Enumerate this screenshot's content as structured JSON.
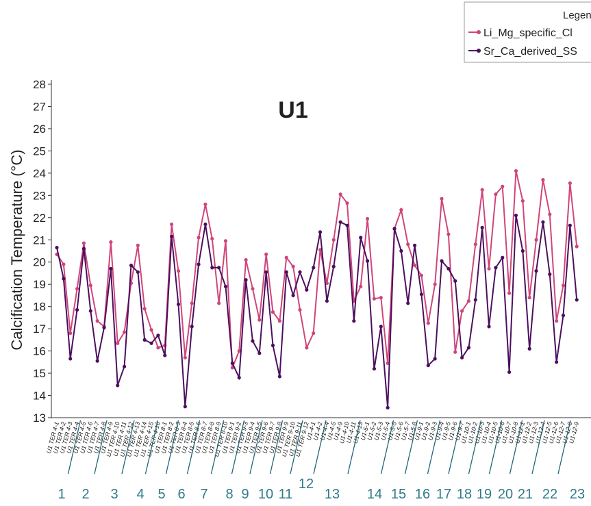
{
  "chart_data": {
    "type": "line",
    "title": "U1",
    "y_label": "Calcification Temperature (°C)",
    "legend_title": "Legen",
    "legend_position": "top-right",
    "ylim": [
      13,
      28
    ],
    "yticks": [
      13,
      14,
      15,
      16,
      17,
      18,
      19,
      20,
      21,
      22,
      23,
      24,
      25,
      26,
      27,
      28
    ],
    "categories": [
      "U1 TER 4-1",
      "U1 TER 4-2",
      "U1 TER 4-3",
      "U1 TER 4-4",
      "U1 TER 4-5",
      "U1 TER 4-6",
      "U1 TER 4-7",
      "U1 TER 4-8",
      "U1 TER 4-9",
      "U1 TER 4-10",
      "U1 TER 4-11",
      "U1 TER 4-12",
      "U1 TER 4-13",
      "U1 TER 4-14",
      "U1 TER 4-15",
      "U1 TER 4-16",
      "U1 TER 8-1",
      "U1 TER 8-2",
      "U1 TER 8-3",
      "U1 TER 8-4",
      "U1 TER 8-5",
      "U1 TER 8-6",
      "U1 TER 8-7",
      "U1 TER 8-8",
      "U1 TER 8-9",
      "U1 TER 8-10",
      "U1 TER 9-1",
      "U1 TER 9-2",
      "U1 TER 9-3",
      "U1 TER 9-4",
      "U1 TER 9-5",
      "U1 TER 9-6",
      "U1 TER 9-7",
      "U1 TER 9-8",
      "U1 TER 9-9",
      "U1 TER 9-10",
      "U1 TER 9-11",
      "U1 TER 9-12",
      "U1-4-1",
      "U1-4-2",
      "U1-4-4",
      "U1-4-5",
      "U1-4-9",
      "U1-4-10",
      "U1-4-11",
      "U1-4-13",
      "U1-5-1",
      "U1-5-2",
      "U1-5-3",
      "U1-5-4",
      "U1-5-5",
      "U1-5-6",
      "U1-5-7",
      "U1-5-8",
      "U1-9-1",
      "U1-9-2",
      "U1-9-3",
      "U1-9-4",
      "U1-9-5",
      "U1-9-6",
      "U1-9-7",
      "U1-10-1",
      "U1-10-2",
      "U1-10-3",
      "U1-10-4",
      "U1-10-5",
      "U1-10-6",
      "U1-10-7",
      "U1-10-8",
      "U1-12-1",
      "U1-12-2",
      "U1-12-3",
      "U1-12-4",
      "U1-12-5",
      "U1-12-6",
      "U1-12-7",
      "U1-12-8",
      "U1-12-9"
    ],
    "series": [
      {
        "name": "Li_Mg_specific_Cl",
        "color": "#d0457a",
        "values": [
          20.35,
          19.9,
          16.8,
          18.8,
          20.85,
          18.95,
          17.35,
          17.1,
          20.9,
          16.35,
          16.85,
          19.05,
          20.75,
          17.9,
          16.95,
          16.15,
          16.25,
          21.7,
          19.6,
          15.7,
          18.15,
          21.1,
          22.6,
          21.05,
          18.15,
          20.95,
          15.25,
          16.0,
          20.1,
          18.8,
          17.4,
          20.35,
          17.75,
          17.35,
          20.2,
          19.8,
          17.85,
          16.15,
          16.8,
          20.55,
          19.05,
          21.0,
          23.05,
          22.65,
          18.25,
          18.9,
          21.95,
          18.35,
          18.4,
          15.45,
          21.5,
          22.35,
          20.8,
          19.85,
          19.4,
          17.25,
          19.0,
          22.85,
          21.25,
          15.95,
          17.8,
          18.25,
          20.8,
          23.25,
          19.7,
          23.05,
          23.4,
          18.6,
          24.1,
          22.75,
          18.4,
          21.0,
          23.7,
          22.15,
          17.35,
          18.95,
          23.55,
          20.7
        ]
      },
      {
        "name": "Sr_Ca_derived_SS",
        "color": "#4b0f5e",
        "values": [
          20.65,
          19.25,
          15.65,
          17.85,
          20.6,
          17.8,
          15.55,
          17.05,
          19.7,
          14.45,
          15.3,
          19.85,
          19.55,
          16.5,
          16.35,
          16.7,
          15.8,
          21.15,
          18.1,
          13.5,
          17.1,
          19.9,
          21.7,
          19.75,
          19.75,
          18.9,
          15.45,
          14.8,
          19.2,
          16.45,
          15.9,
          19.55,
          16.25,
          14.85,
          19.55,
          18.5,
          19.55,
          18.75,
          19.75,
          21.35,
          18.25,
          19.8,
          21.8,
          21.65,
          17.35,
          21.1,
          20.05,
          15.2,
          17.1,
          13.45,
          21.5,
          20.5,
          18.15,
          20.75,
          18.55,
          15.35,
          15.65,
          20.05,
          19.7,
          19.15,
          15.7,
          16.15,
          18.3,
          21.55,
          17.1,
          19.75,
          20.2,
          15.05,
          22.1,
          20.5,
          16.1,
          19.6,
          21.8,
          19.45,
          15.5,
          17.6,
          21.65,
          18.3
        ]
      }
    ],
    "group_labels": [
      "1",
      "2",
      "3",
      "4",
      "5",
      "6",
      "7",
      "8",
      "9",
      "10",
      "11",
      "12",
      "13",
      "14",
      "15",
      "16",
      "17",
      "18",
      "19",
      "20",
      "21",
      "22",
      "23"
    ]
  }
}
